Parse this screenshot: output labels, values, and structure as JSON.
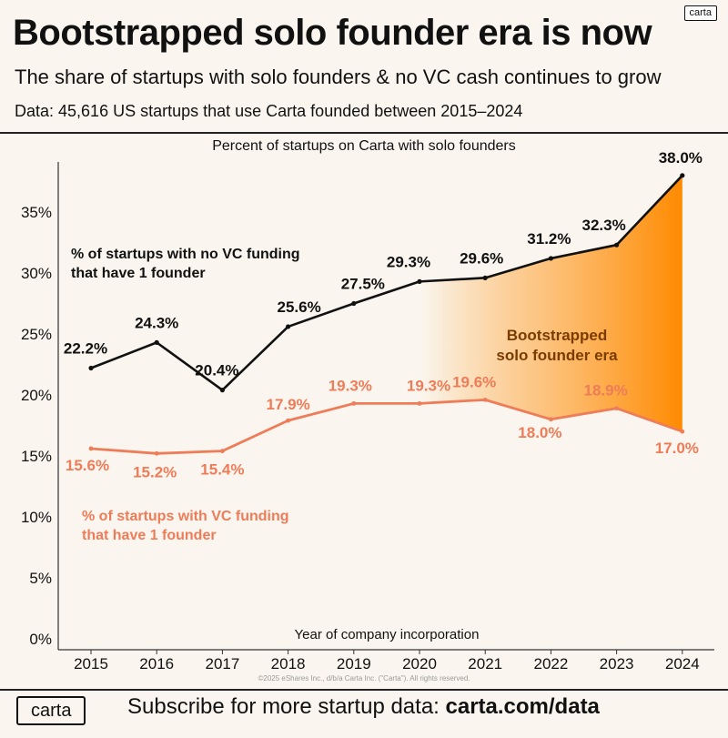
{
  "header": {
    "logo_badge": "carta",
    "title": "Bootstrapped solo founder era is now",
    "subtitle": "The share of startups with solo founders & no VC cash continues to grow",
    "source": "Data: 45,616 US startups that use Carta founded between 2015–2024"
  },
  "chart_data": {
    "type": "line",
    "title": "Percent of startups on Carta with solo founders",
    "xlabel": "Year of company incorporation",
    "ylabel": "",
    "categories": [
      "2015",
      "2016",
      "2017",
      "2018",
      "2019",
      "2020",
      "2021",
      "2022",
      "2023",
      "2024"
    ],
    "ylim": [
      0,
      38
    ],
    "yticks": [
      "0%",
      "5%",
      "10%",
      "15%",
      "20%",
      "25%",
      "30%",
      "35%"
    ],
    "series": [
      {
        "name": "% of startups with no VC funding that have 1 founder",
        "values": [
          22.2,
          24.3,
          20.4,
          25.6,
          27.5,
          29.3,
          29.6,
          31.2,
          32.3,
          38.0
        ],
        "labels": [
          "22.2%",
          "24.3%",
          "20.4%",
          "25.6%",
          "27.5%",
          "29.3%",
          "29.6%",
          "31.2%",
          "32.3%",
          "38.0%"
        ],
        "color": "#111111"
      },
      {
        "name": "% of startups with VC funding that have 1 founder",
        "values": [
          15.6,
          15.2,
          15.4,
          17.9,
          19.3,
          19.3,
          19.6,
          18.0,
          18.9,
          17.0
        ],
        "labels": [
          "15.6%",
          "15.2%",
          "15.4%",
          "17.9%",
          "19.3%",
          "19.3%",
          "19.6%",
          "18.0%",
          "18.9%",
          "17.0%"
        ],
        "color": "#ef7c58"
      }
    ],
    "annotation": {
      "line1": "Bootstrapped",
      "line2": "solo founder era",
      "color": "#ff8c00"
    },
    "grid": false
  },
  "copyright": "©2025 eShares Inc., d/b/a Carta Inc. (\"Carta\"). All rights reserved.",
  "footer": {
    "logo": "carta",
    "text": "Subscribe for more startup data: ",
    "link": "carta.com/data"
  }
}
